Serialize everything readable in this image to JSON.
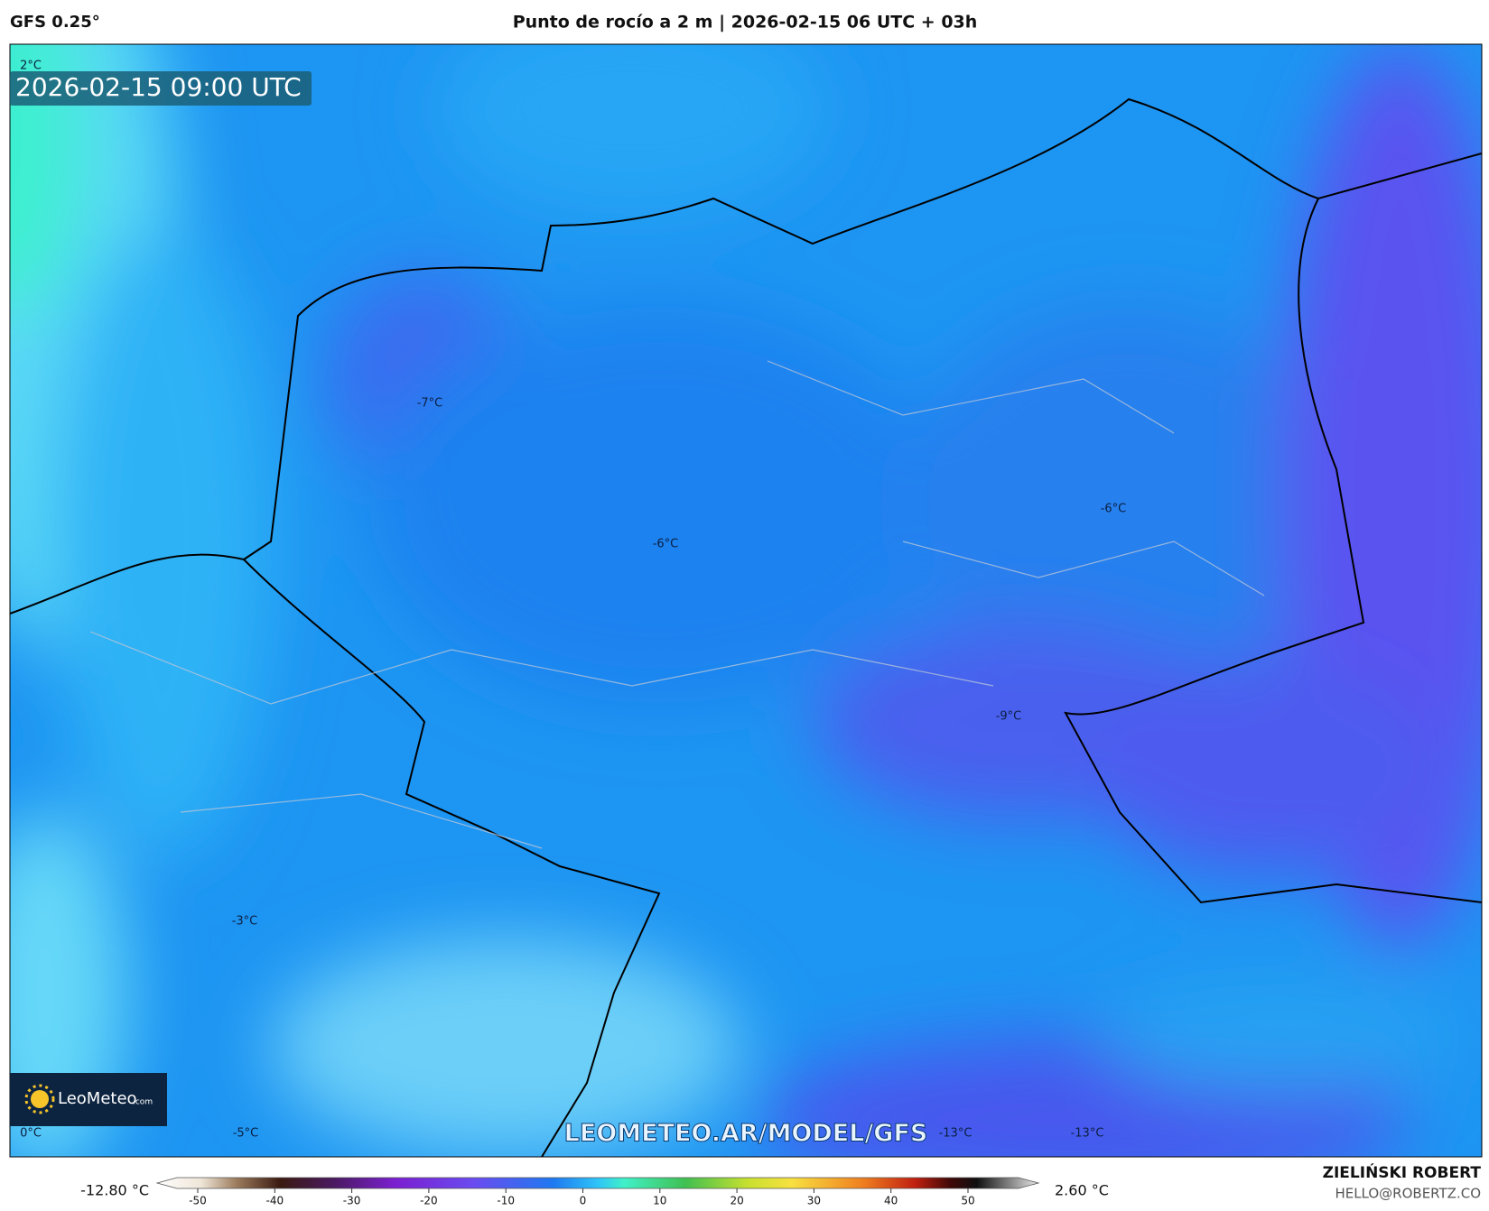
{
  "header": {
    "model": "GFS 0.25°",
    "title": "Punto de rocío a 2 m | 2026-02-15 06 UTC + 03h"
  },
  "map": {
    "valid_time": "2026-02-15 09:00 UTC",
    "contour_labels": [
      "2°C",
      "-7°C",
      "-6°C",
      "-6°C",
      "-9°C",
      "-3°C",
      "0°C",
      "-5°C",
      "-13°C",
      "-13°C"
    ],
    "logo": "LeoMeteo",
    "logo_suffix": ".com",
    "watermark": "LEOMETEO.AR/MODEL/GFS"
  },
  "colorbar": {
    "min_label": "-12.80 °C",
    "max_label": "2.60 °C",
    "ticks": [
      -50,
      -40,
      -30,
      -20,
      -10,
      0,
      10,
      20,
      30,
      40,
      50
    ]
  },
  "footer": {
    "author": "ZIELIŃSKI ROBERT",
    "email": "HELLO@ROBERTZ.CO"
  }
}
